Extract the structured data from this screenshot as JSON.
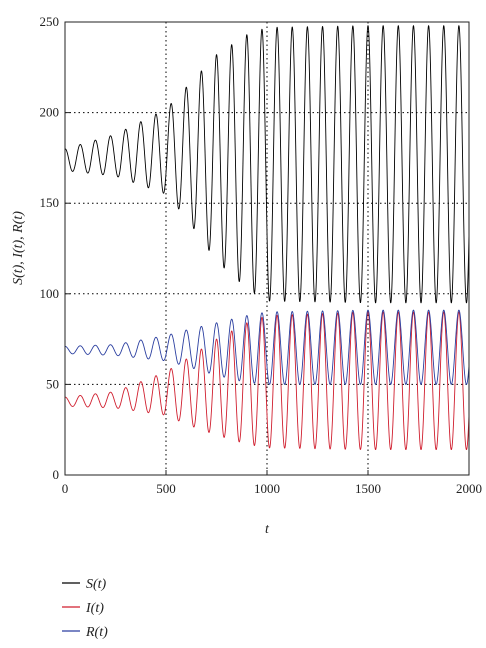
{
  "chart_data": {
    "type": "line",
    "xlabel": "t",
    "ylabel": "S(t), I(t), R(t)",
    "xlim": [
      0,
      2000
    ],
    "ylim": [
      0,
      250
    ],
    "x_ticks": [
      0,
      500,
      1000,
      1500,
      2000
    ],
    "y_ticks": [
      0,
      50,
      100,
      150,
      200,
      250
    ],
    "x_tick_labels": [
      "0",
      "500",
      "1000",
      "1500",
      "2000"
    ],
    "y_tick_labels": [
      "0",
      "50",
      "100",
      "150",
      "200",
      "250"
    ],
    "grid": "dotted",
    "legend_position": "bottom-left",
    "oscillation_period": 75,
    "series": [
      {
        "name": "S(t)",
        "color": "#000000",
        "envelope": [
          {
            "t": 0,
            "min": 168,
            "max": 180
          },
          {
            "t": 250,
            "min": 165,
            "max": 188
          },
          {
            "t": 500,
            "min": 155,
            "max": 202
          },
          {
            "t": 600,
            "min": 142,
            "max": 214
          },
          {
            "t": 750,
            "min": 118,
            "max": 232
          },
          {
            "t": 900,
            "min": 103,
            "max": 243
          },
          {
            "t": 1000,
            "min": 96,
            "max": 247
          },
          {
            "t": 1500,
            "min": 95,
            "max": 248
          },
          {
            "t": 2000,
            "min": 95,
            "max": 248
          }
        ]
      },
      {
        "name": "I(t)",
        "color": "#d01f2f",
        "envelope": [
          {
            "t": 0,
            "min": 38,
            "max": 43
          },
          {
            "t": 250,
            "min": 37,
            "max": 46
          },
          {
            "t": 500,
            "min": 33,
            "max": 57
          },
          {
            "t": 600,
            "min": 28,
            "max": 64
          },
          {
            "t": 750,
            "min": 22,
            "max": 75
          },
          {
            "t": 900,
            "min": 17,
            "max": 84
          },
          {
            "t": 1000,
            "min": 15,
            "max": 88
          },
          {
            "t": 1500,
            "min": 14,
            "max": 90
          },
          {
            "t": 2000,
            "min": 14,
            "max": 90
          }
        ]
      },
      {
        "name": "R(t)",
        "color": "#2b3fa0",
        "envelope": [
          {
            "t": 0,
            "min": 67,
            "max": 71
          },
          {
            "t": 250,
            "min": 66,
            "max": 72
          },
          {
            "t": 500,
            "min": 63,
            "max": 77
          },
          {
            "t": 600,
            "min": 60,
            "max": 80
          },
          {
            "t": 750,
            "min": 55,
            "max": 84
          },
          {
            "t": 900,
            "min": 51,
            "max": 88
          },
          {
            "t": 1000,
            "min": 50,
            "max": 90
          },
          {
            "t": 1500,
            "min": 50,
            "max": 91
          },
          {
            "t": 2000,
            "min": 50,
            "max": 91
          }
        ]
      }
    ]
  }
}
